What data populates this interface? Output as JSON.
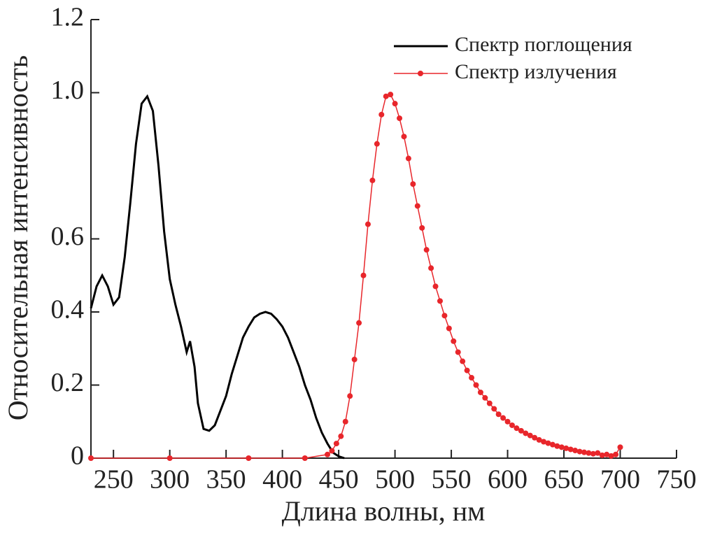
{
  "chart_data": {
    "type": "line",
    "xlabel": "Длина волны, нм",
    "ylabel": "Относительная интенсивность",
    "xlim": [
      230,
      750
    ],
    "xticks": [
      250,
      300,
      350,
      400,
      450,
      500,
      550,
      600,
      650,
      700,
      750
    ],
    "ylim": [
      0,
      1.2
    ],
    "yticks": [
      0,
      0.2,
      0.4,
      0.6,
      {
        "value": 1,
        "label": "1.0"
      },
      1.2
    ],
    "legend": "upper right",
    "series": [
      {
        "name": "Спектр поглощения",
        "color": "#000000",
        "marker": false,
        "x": [
          230,
          235,
          240,
          245,
          250,
          255,
          260,
          265,
          270,
          275,
          280,
          285,
          290,
          295,
          300,
          305,
          310,
          315,
          318,
          322,
          325,
          330,
          335,
          340,
          345,
          350,
          355,
          360,
          365,
          370,
          375,
          380,
          385,
          390,
          395,
          400,
          405,
          410,
          415,
          420,
          425,
          430,
          435,
          440,
          445,
          450,
          455
        ],
        "values": [
          0.41,
          0.47,
          0.5,
          0.47,
          0.42,
          0.44,
          0.55,
          0.7,
          0.86,
          0.97,
          0.99,
          0.95,
          0.8,
          0.62,
          0.49,
          0.42,
          0.36,
          0.29,
          0.32,
          0.25,
          0.15,
          0.08,
          0.075,
          0.09,
          0.13,
          0.17,
          0.23,
          0.28,
          0.33,
          0.36,
          0.385,
          0.395,
          0.4,
          0.395,
          0.38,
          0.36,
          0.33,
          0.29,
          0.25,
          0.2,
          0.16,
          0.11,
          0.07,
          0.04,
          0.015,
          0.005,
          0
        ]
      },
      {
        "name": "Спектр излучения",
        "color": "#e8262b",
        "marker": true,
        "x": [
          230,
          300,
          370,
          420,
          440,
          444,
          448,
          452,
          456,
          460,
          464,
          468,
          472,
          476,
          480,
          484,
          488,
          492,
          496,
          500,
          504,
          508,
          512,
          516,
          520,
          524,
          528,
          532,
          536,
          540,
          544,
          548,
          552,
          556,
          560,
          564,
          568,
          572,
          576,
          580,
          584,
          588,
          592,
          596,
          600,
          604,
          608,
          612,
          616,
          620,
          624,
          628,
          632,
          636,
          640,
          644,
          648,
          652,
          656,
          660,
          664,
          668,
          672,
          676,
          680,
          684,
          688,
          692,
          696,
          700
        ],
        "values": [
          0,
          0,
          0,
          0,
          0.01,
          0.02,
          0.04,
          0.06,
          0.1,
          0.17,
          0.27,
          0.37,
          0.5,
          0.64,
          0.76,
          0.86,
          0.94,
          0.99,
          0.995,
          0.97,
          0.93,
          0.88,
          0.82,
          0.75,
          0.69,
          0.63,
          0.57,
          0.52,
          0.47,
          0.43,
          0.39,
          0.355,
          0.32,
          0.29,
          0.265,
          0.24,
          0.22,
          0.2,
          0.18,
          0.165,
          0.15,
          0.135,
          0.12,
          0.11,
          0.1,
          0.09,
          0.082,
          0.075,
          0.068,
          0.062,
          0.056,
          0.05,
          0.045,
          0.041,
          0.037,
          0.033,
          0.03,
          0.027,
          0.024,
          0.021,
          0.018,
          0.016,
          0.014,
          0.012,
          0.014,
          0.008,
          0.01,
          0.006,
          0.01,
          0.03
        ]
      }
    ]
  }
}
